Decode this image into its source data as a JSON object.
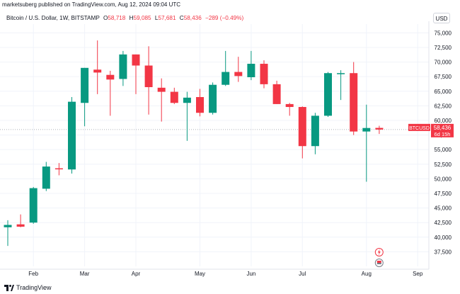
{
  "header": {
    "publisher_line": "marketsuberg published on TradingView.com, Aug 12, 2024 09:04 UTC"
  },
  "legend": {
    "symbol": "Bitcoin / U.S. Dollar, 1W, BITSTAMP",
    "o_label": "O",
    "o_value": "58,718",
    "h_label": "H",
    "h_value": "59,085",
    "l_label": "L",
    "l_value": "57,681",
    "c_label": "C",
    "c_value": "58,436",
    "change": "−289 (−0.49%)"
  },
  "currency": "USD",
  "price_badge": {
    "ticker": "BTCUSD",
    "price": "58,436",
    "countdown": "6d 15h"
  },
  "footer": {
    "brand": "TradingView"
  },
  "colors": {
    "up": "#089981",
    "down": "#f23645",
    "grid": "#f0f3fa",
    "text": "#131722",
    "crosshair": "#9598a1"
  },
  "icons": {
    "event_markers": [
      "lightning-event-icon",
      "flag-event-icon"
    ]
  },
  "chart_data": {
    "type": "candlestick",
    "interval": "1W",
    "ylim": [
      35000,
      76500
    ],
    "y_ticks": [
      37500,
      40000,
      42500,
      45000,
      47500,
      50000,
      52500,
      55000,
      57500,
      60000,
      62500,
      65000,
      67500,
      70000,
      72500,
      75000
    ],
    "y_tick_labels": [
      "37,500",
      "40,000",
      "42,500",
      "45,000",
      "47,500",
      "50,000",
      "52,500",
      "55,000",
      "57,500",
      "60,000",
      "62,500",
      "65,000",
      "67,500",
      "70,000",
      "72,500",
      "75,000"
    ],
    "x_tick_labels": [
      "Feb",
      "Mar",
      "Apr",
      "May",
      "Jun",
      "Jul",
      "Aug",
      "Sep"
    ],
    "x_tick_positions_weeks": [
      2,
      6,
      10,
      15,
      19,
      23,
      28,
      32
    ],
    "candles": [
      {
        "o": 41700,
        "h": 42900,
        "l": 38500,
        "c": 42100
      },
      {
        "o": 42200,
        "h": 43900,
        "l": 41700,
        "c": 41800
      },
      {
        "o": 42500,
        "h": 48600,
        "l": 42300,
        "c": 48400
      },
      {
        "o": 48300,
        "h": 52900,
        "l": 47900,
        "c": 52100
      },
      {
        "o": 51800,
        "h": 52700,
        "l": 50600,
        "c": 51700
      },
      {
        "o": 51600,
        "h": 64000,
        "l": 50900,
        "c": 63200
      },
      {
        "o": 63000,
        "h": 69000,
        "l": 59000,
        "c": 69000
      },
      {
        "o": 68700,
        "h": 73700,
        "l": 64500,
        "c": 68200
      },
      {
        "o": 67800,
        "h": 68500,
        "l": 60800,
        "c": 67000
      },
      {
        "o": 67100,
        "h": 71900,
        "l": 65900,
        "c": 71300
      },
      {
        "o": 71300,
        "h": 71300,
        "l": 64500,
        "c": 69400
      },
      {
        "o": 69400,
        "h": 72700,
        "l": 61000,
        "c": 65700
      },
      {
        "o": 65600,
        "h": 67200,
        "l": 59800,
        "c": 64900
      },
      {
        "o": 64900,
        "h": 65600,
        "l": 62800,
        "c": 63000
      },
      {
        "o": 63000,
        "h": 64900,
        "l": 56500,
        "c": 63900
      },
      {
        "o": 64000,
        "h": 65400,
        "l": 60700,
        "c": 61300
      },
      {
        "o": 61300,
        "h": 66500,
        "l": 61000,
        "c": 66100
      },
      {
        "o": 66100,
        "h": 71900,
        "l": 65900,
        "c": 68300
      },
      {
        "o": 68300,
        "h": 70900,
        "l": 66600,
        "c": 67600
      },
      {
        "o": 67400,
        "h": 71900,
        "l": 66900,
        "c": 69700
      },
      {
        "o": 69700,
        "h": 70300,
        "l": 65500,
        "c": 66200
      },
      {
        "o": 66200,
        "h": 66800,
        "l": 62800,
        "c": 62800
      },
      {
        "o": 62800,
        "h": 63000,
        "l": 60800,
        "c": 62300
      },
      {
        "o": 62300,
        "h": 62400,
        "l": 53500,
        "c": 55600
      },
      {
        "o": 55600,
        "h": 61300,
        "l": 54200,
        "c": 60800
      },
      {
        "o": 60800,
        "h": 68300,
        "l": 60600,
        "c": 68100
      },
      {
        "o": 68100,
        "h": 68600,
        "l": 63500,
        "c": 68100
      },
      {
        "o": 68100,
        "h": 70000,
        "l": 57500,
        "c": 58100
      },
      {
        "o": 58100,
        "h": 62700,
        "l": 49500,
        "c": 58700
      },
      {
        "o": 58718,
        "h": 59085,
        "l": 57681,
        "c": 58436
      }
    ]
  }
}
